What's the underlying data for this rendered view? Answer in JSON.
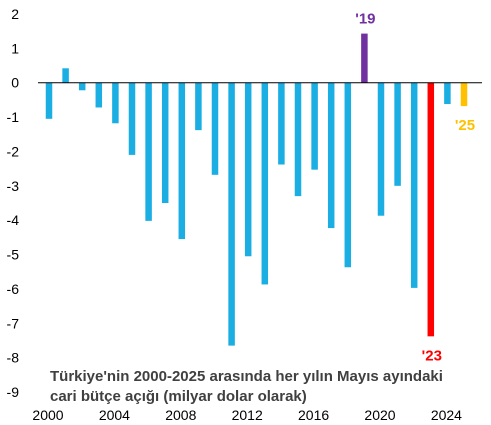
{
  "chart_data": {
    "type": "bar",
    "caption_lines": [
      "Türkiye'nin 2000-2025 arasında her yılın Mayıs ayındaki",
      "cari bütçe açığı (milyar dolar olarak)"
    ],
    "x": [
      2000,
      2001,
      2002,
      2003,
      2004,
      2005,
      2006,
      2007,
      2008,
      2009,
      2010,
      2011,
      2012,
      2013,
      2014,
      2015,
      2016,
      2017,
      2018,
      2019,
      2020,
      2021,
      2022,
      2023,
      2024,
      2025
    ],
    "values": [
      -1.05,
      0.42,
      -0.22,
      -0.72,
      -1.18,
      -2.1,
      -4.02,
      -3.5,
      -4.55,
      -1.38,
      -2.68,
      -7.65,
      -5.05,
      -5.87,
      -2.38,
      -3.3,
      -2.53,
      -4.23,
      -5.37,
      1.43,
      -3.87,
      -3.0,
      -5.97,
      -7.38,
      -0.62,
      -0.68
    ],
    "colors": {
      "default": "#1aaee3",
      "2019": "#7030a0",
      "2023": "#ff0000",
      "2025": "#ffc000"
    },
    "ylim": [
      -9,
      2
    ],
    "yticks": [
      2,
      1,
      0,
      -1,
      -2,
      -3,
      -4,
      -5,
      -6,
      -7,
      -8,
      -9
    ],
    "xticks": [
      2000,
      2004,
      2008,
      2012,
      2016,
      2020,
      2024
    ],
    "annotations": [
      {
        "year": 2019,
        "text": "'19",
        "color": "#7030a0"
      },
      {
        "year": 2023,
        "text": "'23",
        "color": "#ff0000"
      },
      {
        "year": 2025,
        "text": "'25",
        "color": "#ffc000"
      }
    ],
    "grid": false
  }
}
